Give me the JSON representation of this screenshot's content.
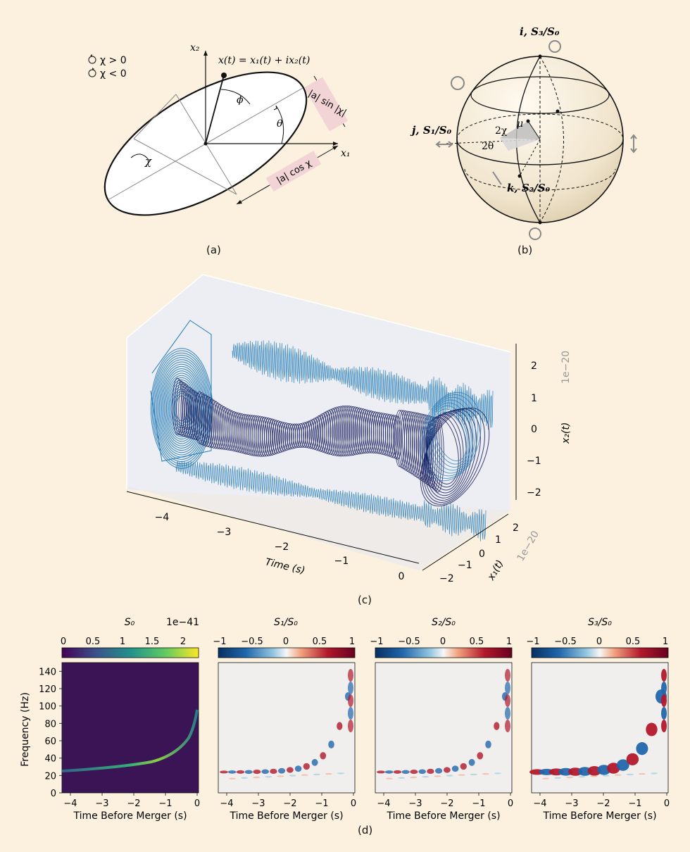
{
  "panel_a": {
    "label": "(a)",
    "legend": [
      "χ > 0",
      "χ < 0"
    ],
    "equation": "x(t) = x₁(t) + ix₂(t)",
    "axis_x1": "x₁",
    "axis_x2": "x₂",
    "phi": "ϕ",
    "theta": "θ",
    "chi": "χ",
    "label_sin": "|a| sin |χ|",
    "label_cos": "|a| cos χ"
  },
  "panel_b": {
    "label": "(b)",
    "axis_i": "i, S₃/S₀",
    "axis_j": "j, S₁/S₀",
    "axis_k": "k, S₂/S₀",
    "two_chi": "2χ",
    "two_theta": "2θ",
    "mu": "μ"
  },
  "panel_c": {
    "label": "(c)",
    "time_label": "Time (s)",
    "time_ticks": [
      "−4",
      "−3",
      "−2",
      "−1",
      "0"
    ],
    "x2_label": "x₂(t)",
    "x2_ticks": [
      "2",
      "1",
      "0",
      "−1",
      "−2"
    ],
    "x2_scale": "1e−20",
    "x1_label": "x₁(t)",
    "x1_ticks": [
      "2",
      "1",
      "0",
      "−1",
      "−2"
    ],
    "x1_scale": "1e−20"
  },
  "panel_d": {
    "label": "(d)",
    "subplots": [
      {
        "title": "S₀",
        "scale": "1e−41",
        "cb_ticks": [
          "0",
          "0.5",
          "1",
          "1.5",
          "2"
        ],
        "xlabel": "Time Before Merger (s)"
      },
      {
        "title": "S₁/S₀",
        "cb_ticks": [
          "−1",
          "−0.5",
          "0",
          "0.5",
          "1"
        ],
        "xlabel": "Time Before Merger (s)"
      },
      {
        "title": "S₂/S₀",
        "cb_ticks": [
          "−1",
          "−0.5",
          "0",
          "0.5",
          "1"
        ],
        "xlabel": "Time Before Merger (s)"
      },
      {
        "title": "S₃/S₀",
        "cb_ticks": [
          "−1",
          "−0.5",
          "0",
          "0.5",
          "1"
        ],
        "xlabel": "Time Before Merger (s)"
      }
    ],
    "ylabel": "Frequency (Hz)",
    "y_ticks": [
      "0",
      "20",
      "40",
      "60",
      "80",
      "100",
      "120",
      "140"
    ],
    "x_ticks": [
      "−4",
      "−3",
      "−2",
      "−1",
      "0"
    ]
  },
  "colors": {
    "background": "#fbf1de",
    "pink": "#f2d4d6",
    "navy": "#1b1f5e",
    "teal": "#1f78b4",
    "viridis_bg": "#3a1454"
  }
}
